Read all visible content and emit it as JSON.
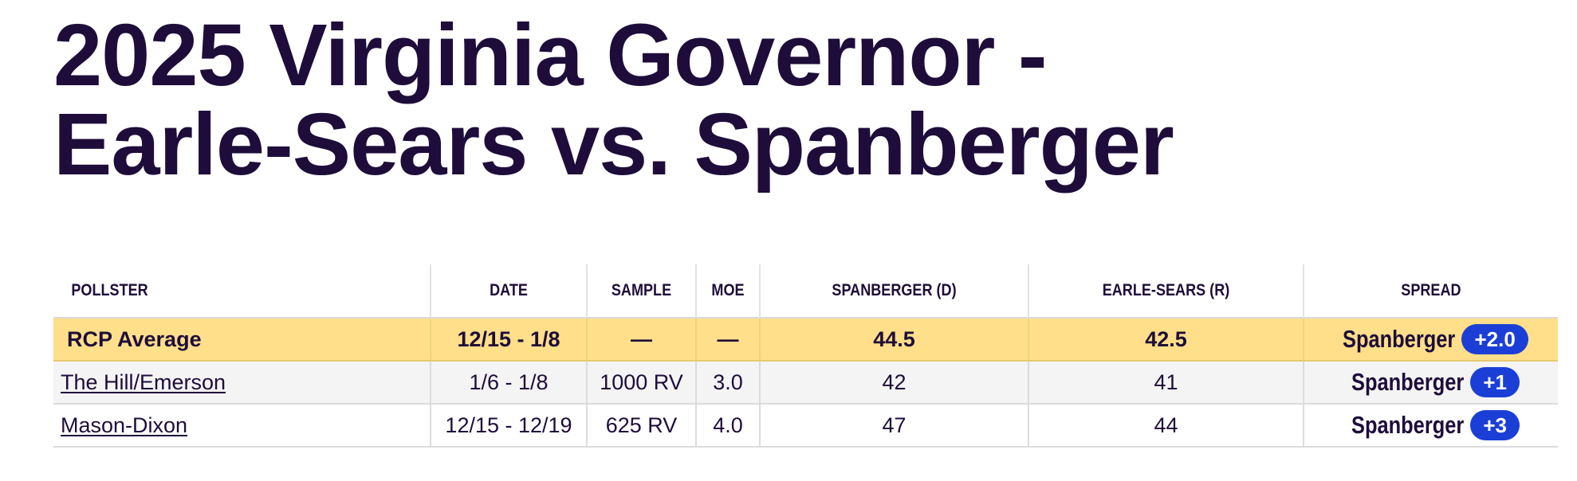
{
  "title": {
    "line1": "2025 Virginia Governor -",
    "line2": "Earle-Sears vs. Spanberger"
  },
  "table": {
    "headers": {
      "pollster": "POLLSTER",
      "date": "DATE",
      "sample": "SAMPLE",
      "moe": "MOE",
      "spanberger": "SPANBERGER (D)",
      "earle_sears": "EARLE-SEARS (R)",
      "spread": "SPREAD"
    },
    "rows": [
      {
        "pollster": "RCP Average",
        "date": "12/15 - 1/8",
        "sample": "—",
        "moe": "—",
        "spanberger": "44.5",
        "earle_sears": "42.5",
        "spread_leader": "Spanberger",
        "spread_value": "+2.0"
      },
      {
        "pollster": "The Hill/Emerson",
        "date": "1/6 - 1/8",
        "sample": "1000 RV",
        "moe": "3.0",
        "spanberger": "42",
        "earle_sears": "41",
        "spread_leader": "Spanberger",
        "spread_value": "+1"
      },
      {
        "pollster": "Mason-Dixon",
        "date": "12/15 - 12/19",
        "sample": "625 RV",
        "moe": "4.0",
        "spanberger": "47",
        "earle_sears": "44",
        "spread_leader": "Spanberger",
        "spread_value": "+3"
      }
    ]
  },
  "colors": {
    "text": "#1e0d3a",
    "average_row": "#ffdf8a",
    "badge": "#1b3fd6",
    "alt_row": "#f4f4f4"
  }
}
